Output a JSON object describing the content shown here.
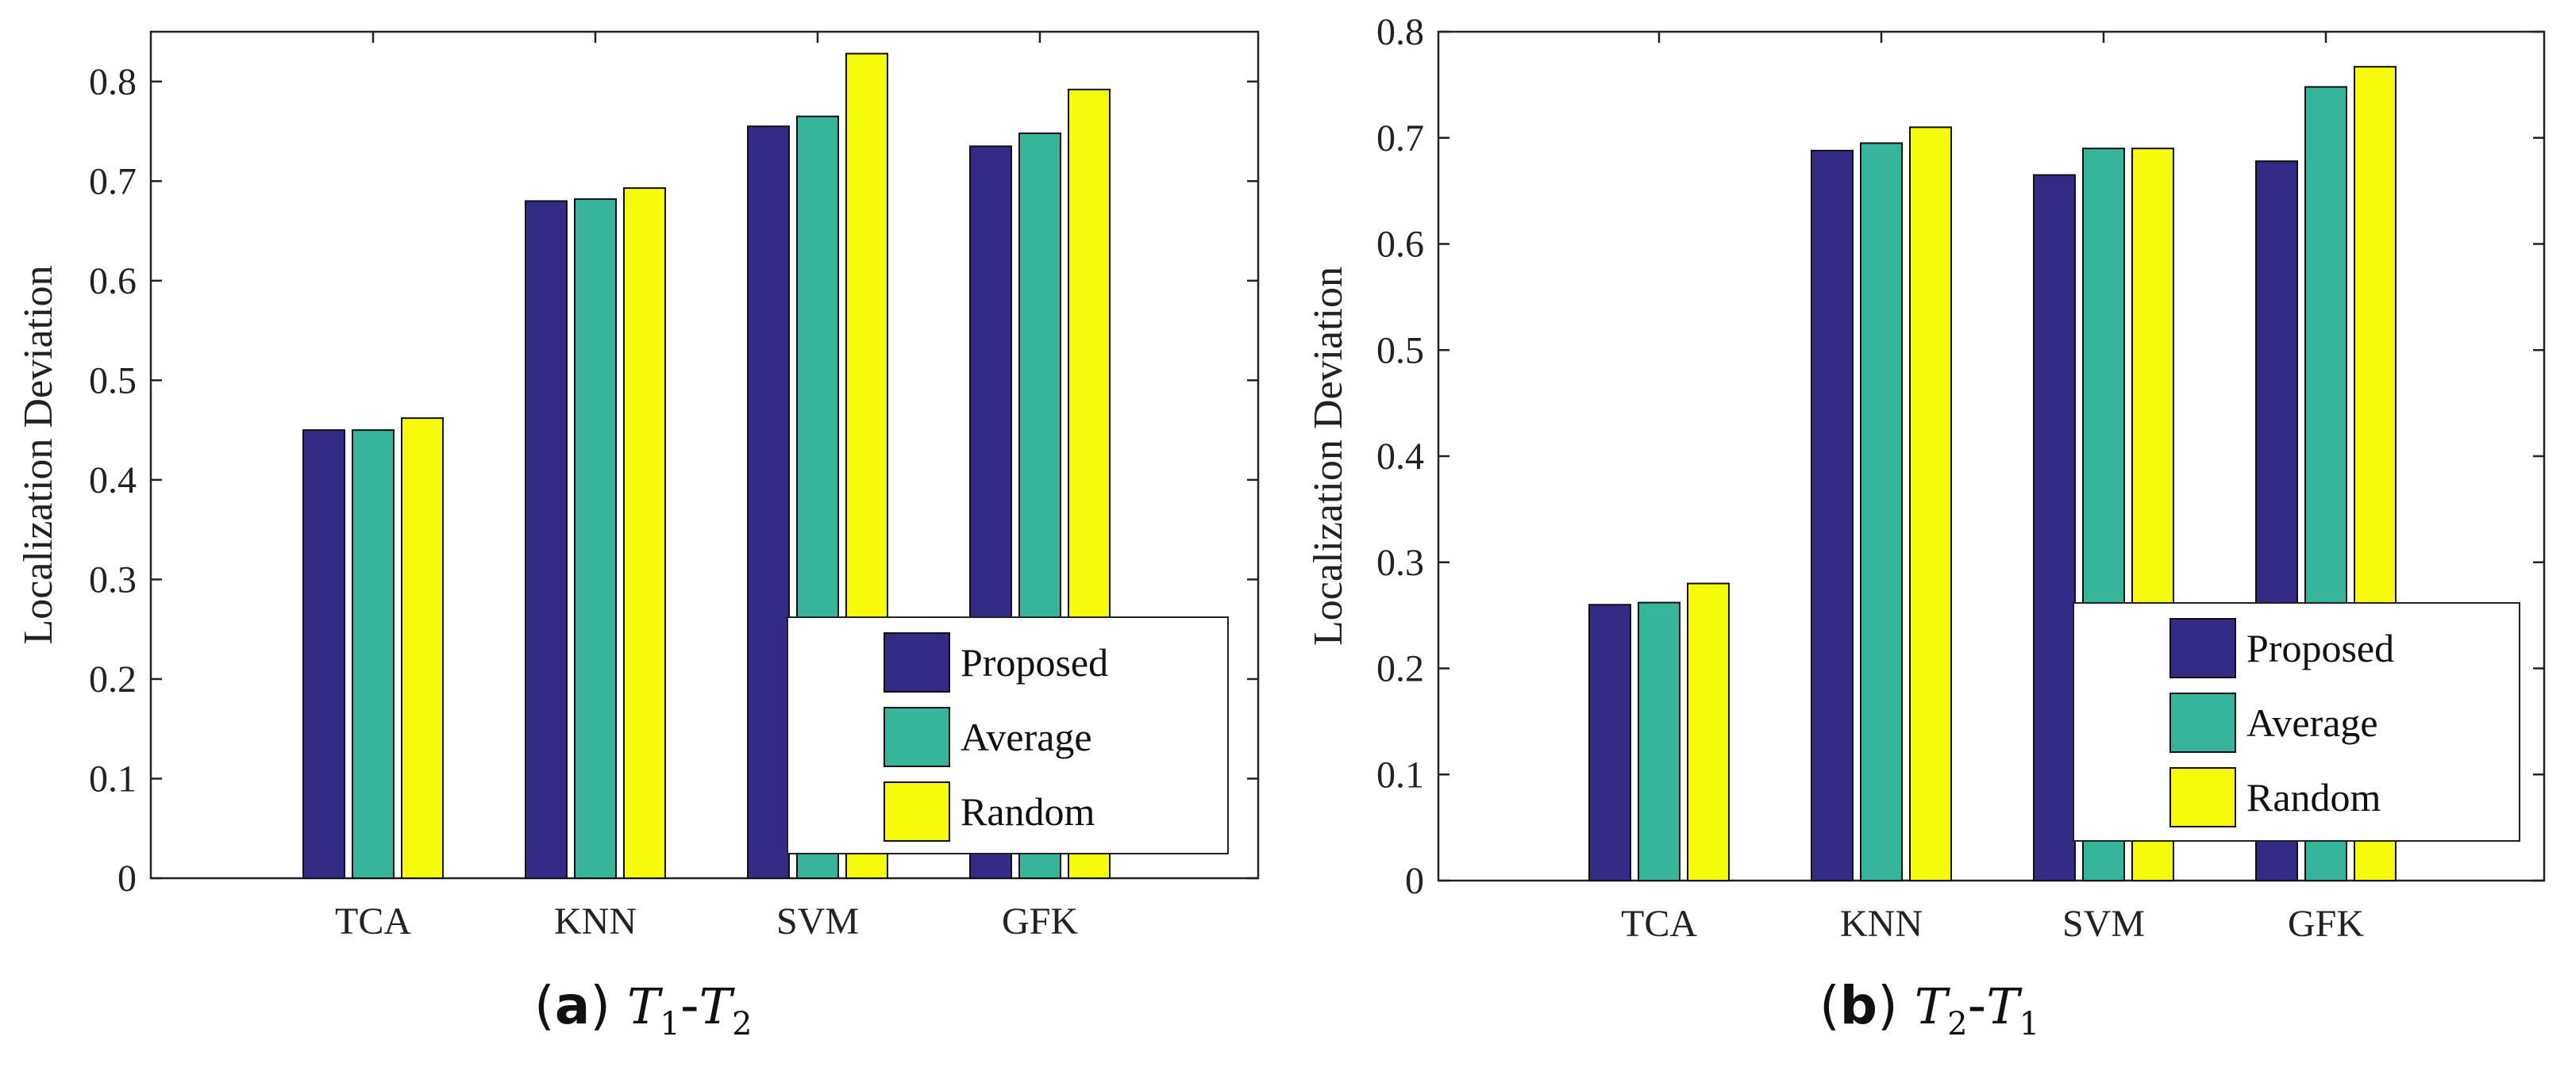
{
  "colors": {
    "Proposed": "#332b85",
    "Average": "#36b59b",
    "Random": "#f6fa0b",
    "axis": "#222222"
  },
  "chart_data": [
    {
      "type": "bar",
      "panel": "a",
      "caption": {
        "label": "a",
        "t1": "T",
        "t1sub": "1",
        "dash": "-",
        "t2": "T",
        "t2sub": "2"
      },
      "categories": [
        "TCA",
        "KNN",
        "SVM",
        "GFK"
      ],
      "series": [
        {
          "name": "Proposed",
          "values": [
            0.45,
            0.68,
            0.755,
            0.735
          ]
        },
        {
          "name": "Average",
          "values": [
            0.45,
            0.682,
            0.765,
            0.748
          ]
        },
        {
          "name": "Random",
          "values": [
            0.462,
            0.693,
            0.828,
            0.792
          ]
        }
      ],
      "ylabel": "Localization Deviation",
      "xlabel": "",
      "ylim": [
        0,
        0.85
      ],
      "yticks": [
        "0",
        "0.1",
        "0.2",
        "0.3",
        "0.4",
        "0.5",
        "0.6",
        "0.7",
        "0.8"
      ],
      "legend": "bottom-right"
    },
    {
      "type": "bar",
      "panel": "b",
      "caption": {
        "label": "b",
        "t1": "T",
        "t1sub": "2",
        "dash": "-",
        "t2": "T",
        "t2sub": "1"
      },
      "categories": [
        "TCA",
        "KNN",
        "SVM",
        "GFK"
      ],
      "series": [
        {
          "name": "Proposed",
          "values": [
            0.26,
            0.688,
            0.665,
            0.678
          ]
        },
        {
          "name": "Average",
          "values": [
            0.262,
            0.695,
            0.69,
            0.748
          ]
        },
        {
          "name": "Random",
          "values": [
            0.28,
            0.71,
            0.69,
            0.767
          ]
        }
      ],
      "ylabel": "Localization Deviation",
      "xlabel": "",
      "ylim": [
        0,
        0.8
      ],
      "yticks": [
        "0",
        "0.1",
        "0.2",
        "0.3",
        "0.4",
        "0.5",
        "0.6",
        "0.7",
        "0.8"
      ],
      "legend": "bottom-right"
    }
  ]
}
